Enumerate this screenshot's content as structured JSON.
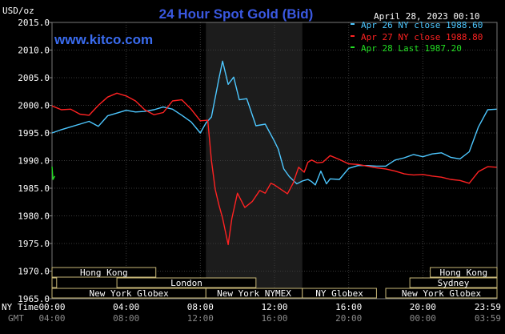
{
  "header": {
    "units": "USD/oz",
    "title": "24 Hour Spot Gold (Bid)",
    "datetime": "April 28, 2023 00:10",
    "site": "www.kitco.com"
  },
  "legend": [
    {
      "label": "Apr 26 NY close 1988.60",
      "color": "#4dc7ff"
    },
    {
      "label": "Apr 27 NY close 1988.80",
      "color": "#ff2222"
    },
    {
      "label": "Apr 28 Last 1987.20",
      "color": "#22dd22"
    }
  ],
  "time_axis": {
    "row1_label": "NY Time",
    "row2_label": "GMT",
    "ny_ticks": [
      "00:00",
      "04:00",
      "08:00",
      "12:00",
      "16:00",
      "20:00",
      "23:59"
    ],
    "gmt_ticks": [
      "04:00",
      "08:00",
      "12:00",
      "16:00",
      "20:00",
      "00:00",
      "03:59"
    ]
  },
  "sessions": [
    {
      "label": "Hong Kong",
      "start": 0.0,
      "end": 5.6
    },
    {
      "label": "Hong Kong",
      "start": 20.4,
      "end": 24.0
    },
    {
      "label": "London",
      "start": 0.0,
      "end": 0.25
    },
    {
      "label": "London",
      "start": 3.5,
      "end": 11.0
    },
    {
      "label": "Sydney",
      "start": 19.3,
      "end": 24.0
    },
    {
      "label": "New York Globex",
      "start": 0.0,
      "end": 8.3
    },
    {
      "label": "New York NYMEX",
      "start": 8.3,
      "end": 13.5
    },
    {
      "label": "NY Globex",
      "start": 13.5,
      "end": 17.5
    },
    {
      "label": "New York Globex",
      "start": 18.0,
      "end": 24.0
    }
  ],
  "chart_data": {
    "type": "line",
    "title": "24 Hour Spot Gold (Bid)",
    "ylabel": "USD/oz",
    "xlabel": "NY Time",
    "xlim": [
      0,
      24
    ],
    "ylim": [
      1965,
      2015
    ],
    "yticks": [
      "1965.0",
      "1970.0",
      "1975.0",
      "1980.0",
      "1985.0",
      "1990.0",
      "1995.0",
      "2000.0",
      "2005.0",
      "2010.0",
      "2015.0"
    ],
    "highlight_hours": [
      8.3,
      13.5
    ],
    "series": [
      {
        "name": "Apr 26 NY close 1988.60",
        "color": "#4dc7ff",
        "x": [
          0,
          0.5,
          1.0,
          1.5,
          2.0,
          2.5,
          3.0,
          3.5,
          4.0,
          4.5,
          5.0,
          5.5,
          6.0,
          6.5,
          7.0,
          7.5,
          8.0,
          8.3,
          8.6,
          9.0,
          9.2,
          9.5,
          9.8,
          10.1,
          10.5,
          11.0,
          11.5,
          12.0,
          12.2,
          12.5,
          12.8,
          13.2,
          13.5,
          13.8,
          14.0,
          14.2,
          14.5,
          14.8,
          15.0,
          15.5,
          16.0,
          16.5,
          17.0,
          17.5,
          18.0,
          18.5,
          19.0,
          19.5,
          20.0,
          20.5,
          21.0,
          21.5,
          22.0,
          22.5,
          23.0,
          23.5,
          23.98
        ],
        "y": [
          1995.0,
          1995.6,
          1996.1,
          1996.6,
          1997.1,
          1996.2,
          1998.1,
          1998.6,
          1999.1,
          1998.8,
          1998.9,
          1999.2,
          1999.7,
          1999.3,
          1998.2,
          1997.0,
          1995.0,
          1996.8,
          1997.9,
          2004.8,
          2008.0,
          2003.8,
          2005.1,
          2001.0,
          2001.2,
          1996.3,
          1996.6,
          1993.5,
          1992.1,
          1988.5,
          1987.1,
          1985.8,
          1986.3,
          1986.6,
          1986.2,
          1985.6,
          1988.1,
          1985.8,
          1986.7,
          1986.6,
          1988.6,
          1989.1,
          1989.1,
          1989.0,
          1989.0,
          1990.1,
          1990.5,
          1991.1,
          1990.7,
          1991.2,
          1991.4,
          1990.6,
          1990.3,
          1991.6,
          1996.1,
          1999.2,
          1999.3
        ]
      },
      {
        "name": "Apr 27 NY close 1988.80",
        "color": "#ff2222",
        "x": [
          0,
          0.5,
          1.0,
          1.5,
          2.0,
          2.5,
          3.0,
          3.5,
          4.0,
          4.5,
          5.0,
          5.5,
          6.0,
          6.5,
          7.0,
          7.5,
          8.0,
          8.4,
          8.6,
          8.8,
          9.0,
          9.2,
          9.5,
          9.7,
          10.0,
          10.4,
          10.8,
          11.2,
          11.5,
          11.8,
          12.0,
          12.3,
          12.7,
          13.0,
          13.3,
          13.6,
          13.8,
          14.0,
          14.3,
          14.6,
          15.0,
          15.5,
          16.0,
          16.5,
          17.0,
          17.5,
          18.0,
          18.5,
          19.0,
          19.5,
          20.0,
          20.5,
          21.0,
          21.5,
          22.0,
          22.5,
          23.0,
          23.5,
          23.98
        ],
        "y": [
          1999.9,
          1999.2,
          1999.3,
          1998.4,
          1998.2,
          2000.0,
          2001.5,
          2002.2,
          2001.7,
          2000.8,
          1999.2,
          1998.3,
          1998.7,
          2000.8,
          2001.0,
          1999.3,
          1997.2,
          1997.3,
          1990.0,
          1984.8,
          1982.0,
          1979.6,
          1974.8,
          1979.5,
          1984.1,
          1981.5,
          1982.6,
          1984.6,
          1984.1,
          1985.9,
          1985.6,
          1984.9,
          1984.0,
          1985.9,
          1988.8,
          1987.9,
          1989.7,
          1990.1,
          1989.6,
          1989.7,
          1990.9,
          1990.2,
          1989.4,
          1989.3,
          1989.0,
          1988.7,
          1988.5,
          1988.1,
          1987.6,
          1987.4,
          1987.5,
          1987.2,
          1987.0,
          1986.6,
          1986.4,
          1985.9,
          1988.0,
          1988.9,
          1988.8
        ]
      },
      {
        "name": "Apr 28 Last 1987.20",
        "color": "#22dd22",
        "x": [
          0,
          0.05,
          0.1,
          0.15
        ],
        "y": [
          1988.9,
          1986.6,
          1986.9,
          1987.2
        ]
      }
    ]
  }
}
